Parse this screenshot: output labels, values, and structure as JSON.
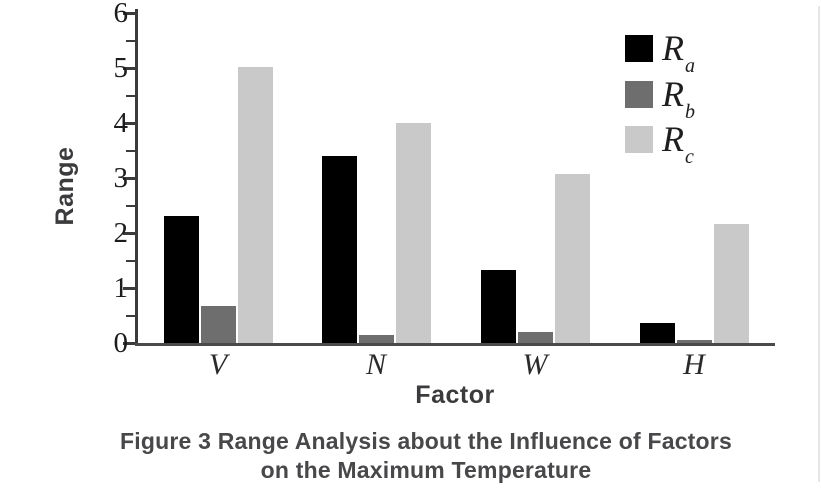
{
  "figure": {
    "caption_line1": "Figure 3 Range Analysis about the Influence of Factors",
    "caption_line2": "on the Maximum Temperature"
  },
  "chart_data": {
    "type": "bar",
    "title": "",
    "xlabel": "Factor",
    "ylabel": "Range",
    "categories": [
      "V",
      "N",
      "W",
      "H"
    ],
    "series": [
      {
        "name": "R",
        "subscript": "a",
        "color": "#000000",
        "values": [
          2.31,
          3.4,
          1.33,
          0.36
        ]
      },
      {
        "name": "R",
        "subscript": "b",
        "color": "#6e6e6e",
        "values": [
          0.67,
          0.15,
          0.2,
          0.05
        ]
      },
      {
        "name": "R",
        "subscript": "c",
        "color": "#c9c9c9",
        "values": [
          5.02,
          4.0,
          3.08,
          2.16
        ]
      }
    ],
    "ylim": [
      0,
      6
    ],
    "yticks": [
      0,
      1,
      2,
      3,
      4,
      5,
      6
    ],
    "minor_tick_interval": 0.5,
    "grid": false,
    "legend_position": "top-right"
  }
}
